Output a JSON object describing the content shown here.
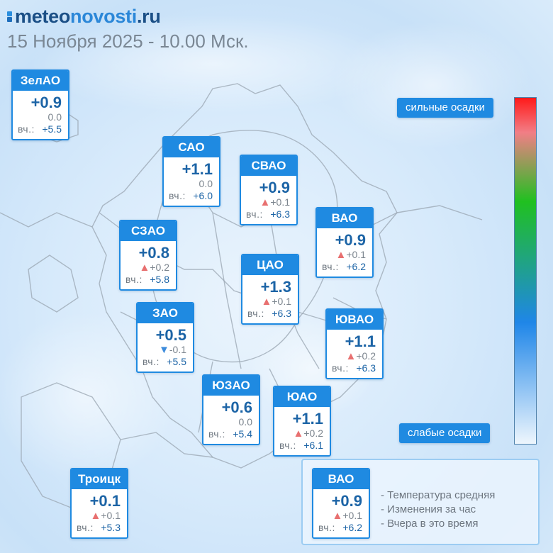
{
  "header": {
    "logo_part1": "meteo",
    "logo_part2": "novosti",
    "logo_part3": ".ru",
    "datetime": "15 Ноября 2025 - 10.00 Мск."
  },
  "yesterday_label": "вч.:",
  "districts": [
    {
      "name": "ЗелАО",
      "temp": "+0.9",
      "change_arrow": "none",
      "change": "0.0",
      "yesterday": "+5.5"
    },
    {
      "name": "САО",
      "temp": "+1.1",
      "change_arrow": "none",
      "change": "0.0",
      "yesterday": "+6.0"
    },
    {
      "name": "СВАО",
      "temp": "+0.9",
      "change_arrow": "up",
      "change": "+0.1",
      "yesterday": "+6.3"
    },
    {
      "name": "ВАО",
      "temp": "+0.9",
      "change_arrow": "up",
      "change": "+0.1",
      "yesterday": "+6.2"
    },
    {
      "name": "СЗАО",
      "temp": "+0.8",
      "change_arrow": "up",
      "change": "+0.2",
      "yesterday": "+5.8"
    },
    {
      "name": "ЦАО",
      "temp": "+1.3",
      "change_arrow": "up",
      "change": "+0.1",
      "yesterday": "+6.3"
    },
    {
      "name": "ЗАО",
      "temp": "+0.5",
      "change_arrow": "down",
      "change": "-0.1",
      "yesterday": "+5.5"
    },
    {
      "name": "ЮВАО",
      "temp": "+1.1",
      "change_arrow": "up",
      "change": "+0.2",
      "yesterday": "+6.3"
    },
    {
      "name": "ЮЗАО",
      "temp": "+0.6",
      "change_arrow": "none",
      "change": "0.0",
      "yesterday": "+5.4"
    },
    {
      "name": "ЮАО",
      "temp": "+1.1",
      "change_arrow": "up",
      "change": "+0.2",
      "yesterday": "+6.1"
    },
    {
      "name": "Троицк",
      "temp": "+0.1",
      "change_arrow": "up",
      "change": "+0.1",
      "yesterday": "+5.3"
    }
  ],
  "arrow_icons": {
    "up": "▲",
    "down": "▼"
  },
  "scale": {
    "top_label": "сильные осадки",
    "bottom_label": "слабые осадки",
    "colors": [
      "#ff1a1a",
      "#f27e86",
      "#20c020",
      "#1f86e8",
      "#eef6fd"
    ]
  },
  "legend": {
    "example": {
      "name": "ВАО",
      "temp": "+0.9",
      "change_arrow": "up",
      "change": "+0.1",
      "yesterday": "+6.2"
    },
    "lines": [
      "- Температура средняя",
      "- Изменения за час",
      "- Вчера в это время"
    ]
  },
  "colors": {
    "accent": "#1f8ae1",
    "temp_text": "#1c64a6",
    "arrow_up": "#e87070",
    "arrow_down": "#3d8cdc"
  }
}
